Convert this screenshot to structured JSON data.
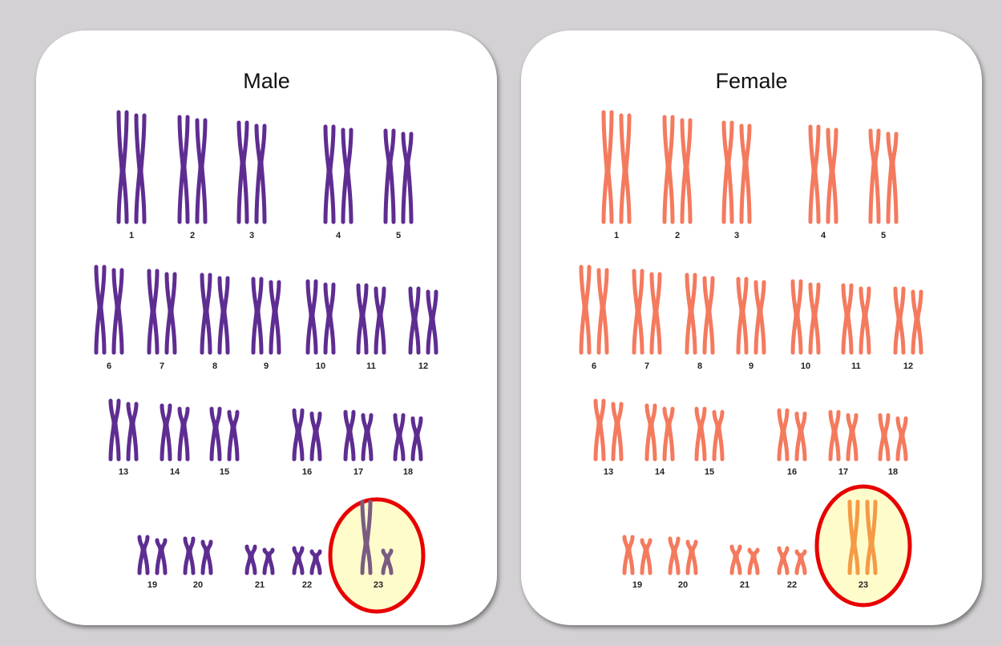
{
  "panels": [
    {
      "id": "male",
      "title": "Male",
      "color": "#5e2d91",
      "sex_color": "#7a5c82",
      "sex_pair": [
        "X",
        "Y"
      ]
    },
    {
      "id": "female",
      "title": "Female",
      "color": "#f47a5e",
      "sex_color": "#f59a45",
      "sex_pair": [
        "X",
        "X"
      ]
    }
  ],
  "labels": [
    "1",
    "2",
    "3",
    "4",
    "5",
    "6",
    "7",
    "8",
    "9",
    "10",
    "11",
    "12",
    "13",
    "14",
    "15",
    "16",
    "17",
    "18",
    "19",
    "20",
    "21",
    "22",
    "23"
  ],
  "highlight": {
    "label": "23",
    "fill": "#fffccc",
    "stroke": "#e80000"
  }
}
